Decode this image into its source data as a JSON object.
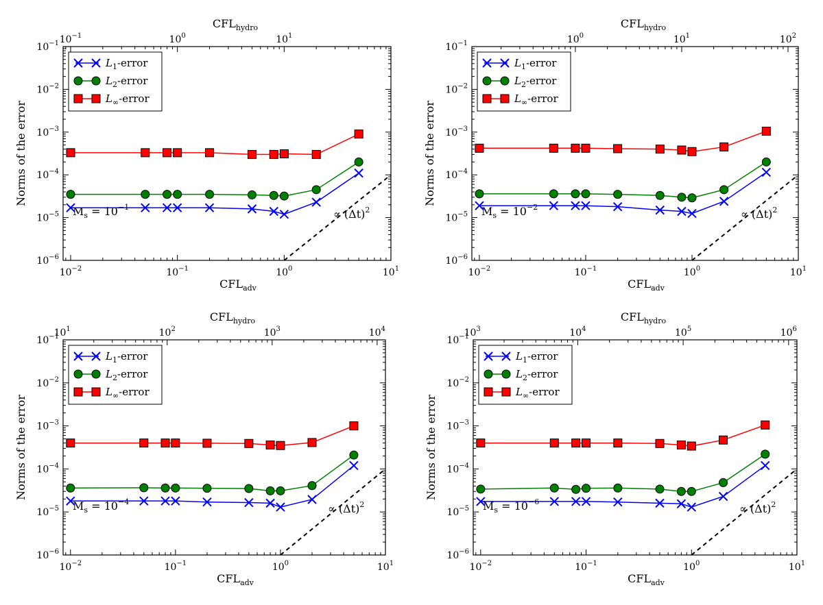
{
  "chart_data": [
    {
      "type": "line",
      "xscale": "log",
      "yscale": "log",
      "xlabel": "CFL_adv",
      "x2label": "CFL_hydro",
      "ylabel": "Norms of the error",
      "xlim": [
        0.0085,
        10
      ],
      "ylim": [
        1e-06,
        0.1
      ],
      "xticks": [
        0.01,
        0.1,
        1,
        10
      ],
      "yticks": [
        1e-06,
        1e-05,
        0.0001,
        0.001,
        0.01,
        0.1
      ],
      "top_axis_factor": 10,
      "top_ticks": [
        0.1,
        1,
        10
      ],
      "legend": "top-left",
      "grid": false,
      "annotation": {
        "prefix": "M",
        "sub": "s",
        "eq": " = 10",
        "exp": "−1"
      },
      "ref_line_label": "∝ (Δt)",
      "ref_line": {
        "x": [
          1,
          10
        ],
        "y": [
          1e-06,
          0.0001
        ]
      },
      "x": [
        0.01,
        0.05,
        0.08,
        0.1,
        0.2,
        0.5,
        0.8,
        1,
        2,
        5
      ],
      "series": [
        {
          "name": {
            "main": "L",
            "sub": "1",
            "rest": "-error"
          },
          "marker": "x",
          "color": "#0000ff",
          "values": [
            1.7e-05,
            1.7e-05,
            1.7e-05,
            1.7e-05,
            1.7e-05,
            1.6e-05,
            1.4e-05,
            1.2e-05,
            2.3e-05,
            0.00011
          ]
        },
        {
          "name": {
            "main": "L",
            "sub": "2",
            "rest": "-error"
          },
          "marker": "circle",
          "color": "#008000",
          "values": [
            3.5e-05,
            3.5e-05,
            3.5e-05,
            3.5e-05,
            3.5e-05,
            3.4e-05,
            3.3e-05,
            3.2e-05,
            4.5e-05,
            0.0002
          ]
        },
        {
          "name": {
            "main": "L",
            "sub": "∞",
            "rest": "-error"
          },
          "marker": "square",
          "color": "#ff0000",
          "values": [
            0.00033,
            0.00033,
            0.00033,
            0.00033,
            0.00033,
            0.0003,
            0.0003,
            0.00031,
            0.0003,
            0.0009
          ]
        }
      ]
    },
    {
      "type": "line",
      "xscale": "log",
      "yscale": "log",
      "xlabel": "CFL_adv",
      "x2label": "CFL_hydro",
      "ylabel": "Norms of the error",
      "xlim": [
        0.0085,
        10
      ],
      "ylim": [
        1e-06,
        0.1
      ],
      "xticks": [
        0.01,
        0.1,
        1,
        10
      ],
      "yticks": [
        1e-06,
        1e-05,
        0.0001,
        0.001,
        0.01,
        0.1
      ],
      "top_axis_factor": 12.5,
      "top_ticks": [
        1,
        10,
        100
      ],
      "legend": "top-left",
      "grid": false,
      "annotation": {
        "prefix": "M",
        "sub": "s",
        "eq": " = 10",
        "exp": "−2"
      },
      "ref_line_label": "∝ (Δt)",
      "ref_line": {
        "x": [
          1,
          10
        ],
        "y": [
          1e-06,
          0.0001
        ]
      },
      "x": [
        0.01,
        0.05,
        0.08,
        0.1,
        0.2,
        0.5,
        0.8,
        1,
        2,
        5
      ],
      "series": [
        {
          "name": {
            "main": "L",
            "sub": "1",
            "rest": "-error"
          },
          "marker": "x",
          "color": "#0000ff",
          "values": [
            1.9e-05,
            1.9e-05,
            1.9e-05,
            1.9e-05,
            1.8e-05,
            1.5e-05,
            1.4e-05,
            1.25e-05,
            2.4e-05,
            0.000115
          ]
        },
        {
          "name": {
            "main": "L",
            "sub": "2",
            "rest": "-error"
          },
          "marker": "circle",
          "color": "#008000",
          "values": [
            3.6e-05,
            3.6e-05,
            3.6e-05,
            3.6e-05,
            3.5e-05,
            3.3e-05,
            3e-05,
            2.9e-05,
            4.5e-05,
            0.0002
          ]
        },
        {
          "name": {
            "main": "L",
            "sub": "∞",
            "rest": "-error"
          },
          "marker": "square",
          "color": "#ff0000",
          "values": [
            0.00042,
            0.00042,
            0.00042,
            0.00042,
            0.00041,
            0.0004,
            0.00038,
            0.00035,
            0.00045,
            0.00105
          ]
        }
      ]
    },
    {
      "type": "line",
      "xscale": "log",
      "yscale": "log",
      "xlabel": "CFL_adv",
      "x2label": "CFL_hydro",
      "ylabel": "Norms of the error",
      "xlim": [
        0.0085,
        10
      ],
      "ylim": [
        1e-06,
        0.1
      ],
      "xticks": [
        0.01,
        0.1,
        1,
        10
      ],
      "yticks": [
        1e-06,
        1e-05,
        0.0001,
        0.001,
        0.01,
        0.1
      ],
      "top_axis_factor": 1200,
      "top_ticks": [
        10,
        100,
        1000,
        10000
      ],
      "legend": "top-left",
      "grid": false,
      "annotation": {
        "prefix": "M",
        "sub": "s",
        "eq": " = 10",
        "exp": "−4"
      },
      "ref_line_label": "∝ (Δt)",
      "ref_line": {
        "x": [
          1,
          10
        ],
        "y": [
          1e-06,
          0.0001
        ]
      },
      "x": [
        0.01,
        0.05,
        0.08,
        0.1,
        0.2,
        0.5,
        0.8,
        1,
        2,
        5
      ],
      "series": [
        {
          "name": {
            "main": "L",
            "sub": "1",
            "rest": "-error"
          },
          "marker": "x",
          "color": "#0000ff",
          "values": [
            1.8e-05,
            1.8e-05,
            1.8e-05,
            1.8e-05,
            1.7e-05,
            1.65e-05,
            1.6e-05,
            1.3e-05,
            1.95e-05,
            0.00012
          ]
        },
        {
          "name": {
            "main": "L",
            "sub": "2",
            "rest": "-error"
          },
          "marker": "circle",
          "color": "#008000",
          "values": [
            3.6e-05,
            3.65e-05,
            3.6e-05,
            3.6e-05,
            3.55e-05,
            3.5e-05,
            3.1e-05,
            3.1e-05,
            4.1e-05,
            0.00021
          ]
        },
        {
          "name": {
            "main": "L",
            "sub": "∞",
            "rest": "-error"
          },
          "marker": "square",
          "color": "#ff0000",
          "values": [
            0.0004,
            0.0004,
            0.0004,
            0.0004,
            0.000395,
            0.00039,
            0.00036,
            0.00035,
            0.00041,
            0.001
          ]
        }
      ]
    },
    {
      "type": "line",
      "xscale": "log",
      "yscale": "log",
      "xlabel": "CFL_adv",
      "x2label": "CFL_hydro",
      "ylabel": "Norms of the error",
      "xlim": [
        0.0085,
        10
      ],
      "ylim": [
        1e-06,
        0.1
      ],
      "xticks": [
        0.01,
        0.1,
        1,
        10
      ],
      "yticks": [
        1e-06,
        1e-05,
        0.0001,
        0.001,
        0.01,
        0.1
      ],
      "top_axis_factor": 120000,
      "top_ticks": [
        1000,
        10000,
        100000,
        1000000
      ],
      "legend": "top-left",
      "grid": false,
      "annotation": {
        "prefix": "M",
        "sub": "s",
        "eq": " = 10",
        "exp": "−6"
      },
      "ref_line_label": "∝ (Δt)",
      "ref_line": {
        "x": [
          1,
          10
        ],
        "y": [
          1e-06,
          0.0001
        ]
      },
      "x": [
        0.01,
        0.05,
        0.08,
        0.1,
        0.2,
        0.5,
        0.8,
        1,
        2,
        5
      ],
      "series": [
        {
          "name": {
            "main": "L",
            "sub": "1",
            "rest": "-error"
          },
          "marker": "x",
          "color": "#0000ff",
          "values": [
            1.75e-05,
            1.75e-05,
            1.75e-05,
            1.75e-05,
            1.7e-05,
            1.6e-05,
            1.55e-05,
            1.3e-05,
            2.3e-05,
            0.00012
          ]
        },
        {
          "name": {
            "main": "L",
            "sub": "2",
            "rest": "-error"
          },
          "marker": "circle",
          "color": "#008000",
          "values": [
            3.4e-05,
            3.6e-05,
            3.35e-05,
            3.55e-05,
            3.6e-05,
            3.4e-05,
            3e-05,
            3e-05,
            4.8e-05,
            0.00022
          ]
        },
        {
          "name": {
            "main": "L",
            "sub": "∞",
            "rest": "-error"
          },
          "marker": "square",
          "color": "#ff0000",
          "values": [
            0.0004,
            0.0004,
            0.0004,
            0.0004,
            0.0004,
            0.00039,
            0.00036,
            0.00034,
            0.00047,
            0.00105
          ]
        }
      ]
    }
  ]
}
